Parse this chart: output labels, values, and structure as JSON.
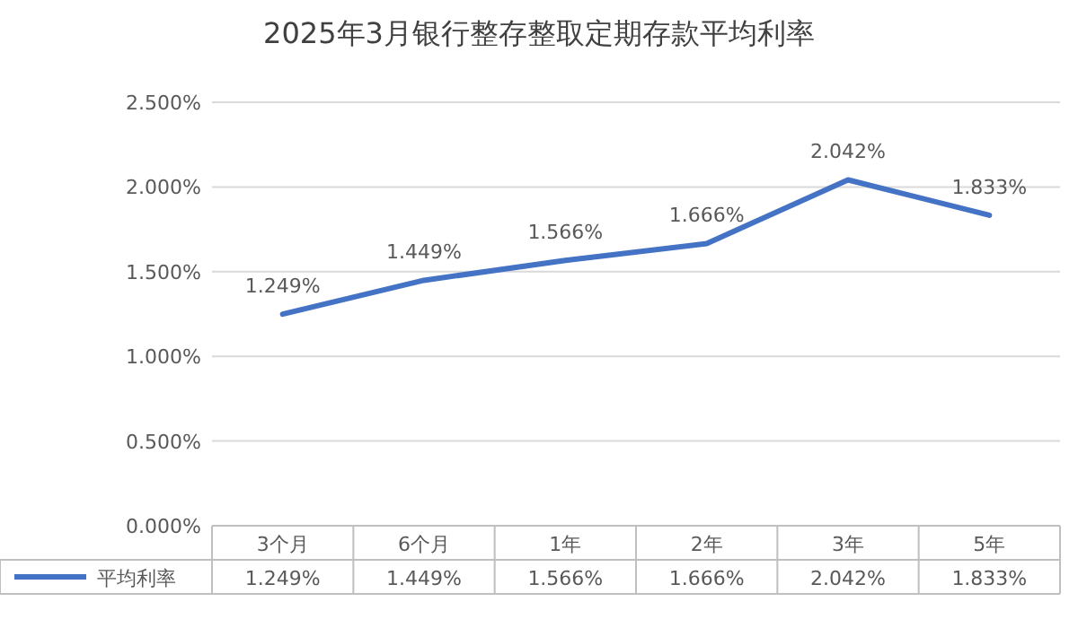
{
  "chart_data": {
    "type": "line",
    "title": "2025年3月银行整存整取定期存款平均利率",
    "categories": [
      "3个月",
      "6个月",
      "1年",
      "2年",
      "3年",
      "5年"
    ],
    "series": [
      {
        "name": "平均利率",
        "color": "#4472c4",
        "values": [
          1.249,
          1.449,
          1.566,
          1.666,
          2.042,
          1.833
        ],
        "value_labels": [
          "1.249%",
          "1.449%",
          "1.566%",
          "1.666%",
          "2.042%",
          "1.833%"
        ]
      }
    ],
    "ylim": [
      0,
      2.5
    ],
    "yticks": [
      {
        "value": 0,
        "label": "0.000%"
      },
      {
        "value": 0.5,
        "label": "0.500%"
      },
      {
        "value": 1,
        "label": "1.000%"
      },
      {
        "value": 1.5,
        "label": "1.500%"
      },
      {
        "value": 2,
        "label": "2.000%"
      },
      {
        "value": 2.5,
        "label": "2.500%"
      }
    ],
    "grid": "y",
    "legend": "bottom",
    "marker": "none",
    "line_style": "solid"
  }
}
